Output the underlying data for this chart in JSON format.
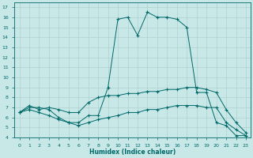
{
  "xlabel": "Humidex (Indice chaleur)",
  "background_color": "#c8e8e8",
  "grid_color": "#b0d0d0",
  "line_color": "#006868",
  "xlim": [
    -0.5,
    23.5
  ],
  "ylim": [
    4,
    17.5
  ],
  "xticks": [
    0,
    1,
    2,
    3,
    4,
    5,
    6,
    7,
    8,
    9,
    10,
    11,
    12,
    13,
    14,
    15,
    16,
    17,
    18,
    19,
    20,
    21,
    22,
    23
  ],
  "yticks": [
    4,
    5,
    6,
    7,
    8,
    9,
    10,
    11,
    12,
    13,
    14,
    15,
    16,
    17
  ],
  "line1_x": [
    0,
    1,
    2,
    3,
    4,
    5,
    6,
    7,
    8,
    9,
    10,
    11,
    12,
    13,
    14,
    15,
    16,
    17,
    18,
    19,
    20,
    21,
    22,
    23
  ],
  "line1_y": [
    6.5,
    7.0,
    7.0,
    6.8,
    6.0,
    5.5,
    5.5,
    6.2,
    6.2,
    9.0,
    15.8,
    16.0,
    14.2,
    16.5,
    16.0,
    16.0,
    15.8,
    15.0,
    8.5,
    8.5,
    5.5,
    5.2,
    4.2,
    4.2
  ],
  "line2_x": [
    0,
    1,
    2,
    3,
    4,
    5,
    6,
    7,
    8,
    9,
    10,
    11,
    12,
    13,
    14,
    15,
    16,
    17,
    18,
    19,
    20,
    21,
    22,
    23
  ],
  "line2_y": [
    6.5,
    7.2,
    6.8,
    7.0,
    6.8,
    6.5,
    6.5,
    7.5,
    8.0,
    8.2,
    8.2,
    8.4,
    8.4,
    8.6,
    8.6,
    8.8,
    8.8,
    9.0,
    9.0,
    8.8,
    8.5,
    6.8,
    5.5,
    4.5
  ],
  "line3_x": [
    0,
    1,
    2,
    3,
    4,
    5,
    6,
    7,
    8,
    9,
    10,
    11,
    12,
    13,
    14,
    15,
    16,
    17,
    18,
    19,
    20,
    21,
    22,
    23
  ],
  "line3_y": [
    6.5,
    6.8,
    6.5,
    6.2,
    5.8,
    5.5,
    5.2,
    5.5,
    5.8,
    6.0,
    6.2,
    6.5,
    6.5,
    6.8,
    6.8,
    7.0,
    7.2,
    7.2,
    7.2,
    7.0,
    7.0,
    5.5,
    4.8,
    4.2
  ]
}
